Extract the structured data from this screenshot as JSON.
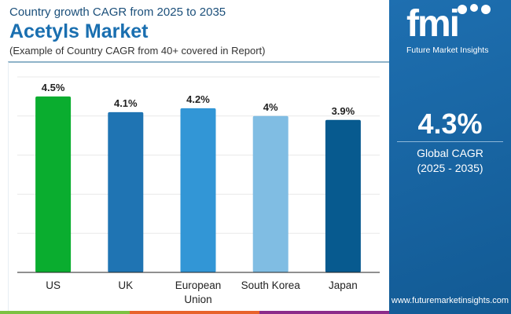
{
  "header": {
    "subtitle": "Country growth CAGR from 2025 to 2035",
    "title": "Acetyls Market",
    "note": "(Example of Country CAGR from 40+ covered in Report)"
  },
  "brand": {
    "logo_text": "fmi",
    "name": "Future Market Insights",
    "url": "www.futuremarketinsights.com"
  },
  "summary": {
    "value": "4.3%",
    "label": "Global CAGR",
    "period": "(2025 - 2035)"
  },
  "colors": {
    "accent": "#1a6fb0",
    "stripes": [
      "#7cc142",
      "#e8632b",
      "#8c2b8a"
    ]
  },
  "chart_data": {
    "type": "bar",
    "title": "",
    "xlabel": "",
    "ylabel": "",
    "ylim": [
      0,
      5
    ],
    "grid": true,
    "categories": [
      "US",
      "UK",
      "European Union",
      "South Korea",
      "Japan"
    ],
    "values": [
      4.5,
      4.1,
      4.2,
      4.0,
      3.9
    ],
    "labels": [
      "4.5%",
      "4.1%",
      "4.2%",
      "4%",
      "3.9%"
    ],
    "colors": [
      "#0aad2f",
      "#1f74b3",
      "#3296d6",
      "#80bde3",
      "#075a8f"
    ]
  }
}
